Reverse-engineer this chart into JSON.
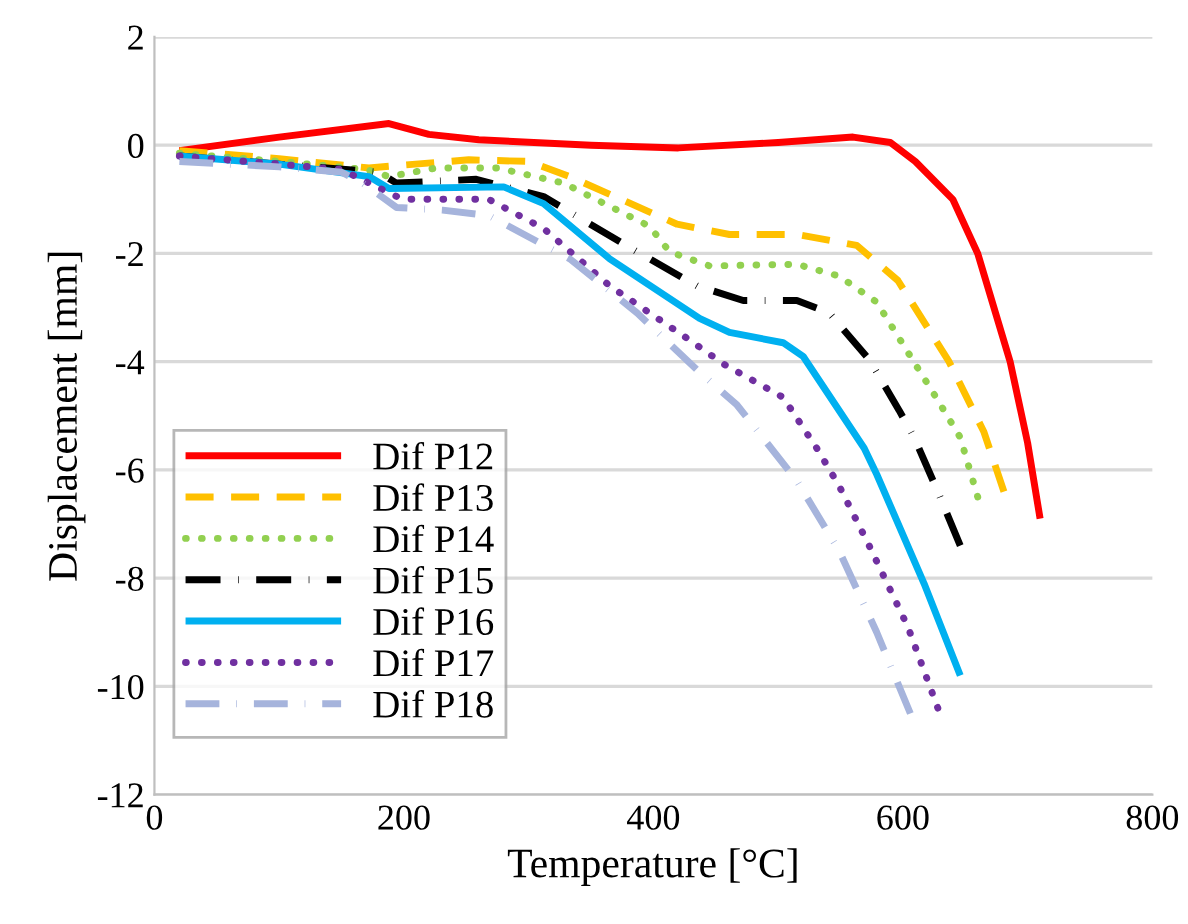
{
  "chart_data": {
    "type": "line",
    "xlabel": "Temperature [°C]",
    "ylabel": "Displacement [mm]",
    "xlim": [
      0,
      800
    ],
    "ylim": [
      -12,
      2
    ],
    "xticks": [
      0,
      200,
      400,
      600,
      800
    ],
    "yticks": [
      -12,
      -10,
      -8,
      -6,
      -4,
      -2,
      0,
      2
    ],
    "grid": "y",
    "legend": "bottom left",
    "marker": "none",
    "series": [
      {
        "name": "Dif P12",
        "color": "#ff0000",
        "line_style": "solid",
        "x": [
          20,
          100,
          188,
          220,
          260,
          350,
          420,
          500,
          560,
          590,
          610,
          640,
          660,
          686,
          700,
          710
        ],
        "values": [
          -0.1,
          0.15,
          0.4,
          0.2,
          0.1,
          0,
          -0.05,
          0.05,
          0.15,
          0.05,
          -0.3,
          -1,
          -2,
          -4,
          -5.5,
          -6.9
        ]
      },
      {
        "name": "Dif P13",
        "color": "#ffc000",
        "line_style": "dashed",
        "x": [
          20,
          100,
          172,
          252,
          300,
          333,
          419,
          461,
          515,
          563,
          596,
          637,
          665,
          681
        ],
        "values": [
          -0.1,
          -0.25,
          -0.42,
          -0.27,
          -0.3,
          -0.58,
          -1.46,
          -1.65,
          -1.65,
          -1.85,
          -2.5,
          -4.0,
          -5.3,
          -6.4
        ]
      },
      {
        "name": "Dif P14",
        "color": "#92d050",
        "line_style": "dotted",
        "x": [
          20,
          100,
          170,
          188,
          226,
          275,
          328,
          397,
          413,
          445,
          515,
          549,
          579,
          606,
          625,
          646,
          660
        ],
        "values": [
          -0.15,
          -0.3,
          -0.45,
          -0.58,
          -0.42,
          -0.42,
          -0.7,
          -1.5,
          -1.97,
          -2.23,
          -2.2,
          -2.42,
          -2.9,
          -3.9,
          -4.6,
          -5.4,
          -6.5
        ]
      },
      {
        "name": "Dif P15",
        "color": "#000000",
        "line_style": "dashdot",
        "x": [
          20,
          100,
          180,
          194,
          258,
          312,
          387,
          435,
          472,
          515,
          541,
          573,
          597,
          609,
          628,
          646
        ],
        "values": [
          -0.2,
          -0.35,
          -0.5,
          -0.7,
          -0.63,
          -0.95,
          -1.97,
          -2.6,
          -2.87,
          -2.87,
          -3.1,
          -3.96,
          -4.9,
          -5.4,
          -6.4,
          -7.4
        ]
      },
      {
        "name": "Dif P16",
        "color": "#00b0f0",
        "line_style": "solid",
        "x": [
          20,
          100,
          172,
          188,
          280,
          312,
          365,
          437,
          461,
          504,
          520,
          569,
          579,
          617,
          646
        ],
        "values": [
          -0.2,
          -0.35,
          -0.58,
          -0.8,
          -0.77,
          -1.08,
          -2.1,
          -3.2,
          -3.46,
          -3.65,
          -3.9,
          -5.6,
          -6.08,
          -8.1,
          -9.8
        ]
      },
      {
        "name": "Dif P17",
        "color": "#7030a0",
        "line_style": "dotted",
        "x": [
          20,
          100,
          150,
          172,
          199,
          268,
          312,
          365,
          429,
          456,
          504,
          531,
          549,
          573,
          604,
          628
        ],
        "values": [
          -0.2,
          -0.35,
          -0.45,
          -0.7,
          -1.0,
          -1.0,
          -1.54,
          -2.6,
          -3.6,
          -4.04,
          -4.66,
          -5.6,
          -6.3,
          -7.4,
          -8.9,
          -10.4
        ]
      },
      {
        "name": "Dif P18",
        "color": "#a6b4dc",
        "line_style": "dashdot",
        "x": [
          20,
          100,
          150,
          167,
          194,
          231,
          268,
          333,
          387,
          435,
          467,
          515,
          549,
          579,
          606
        ],
        "values": [
          -0.3,
          -0.4,
          -0.5,
          -0.7,
          -1.15,
          -1.2,
          -1.3,
          -2.1,
          -3.1,
          -4.15,
          -4.8,
          -6.2,
          -7.5,
          -9.0,
          -10.5
        ]
      }
    ]
  }
}
